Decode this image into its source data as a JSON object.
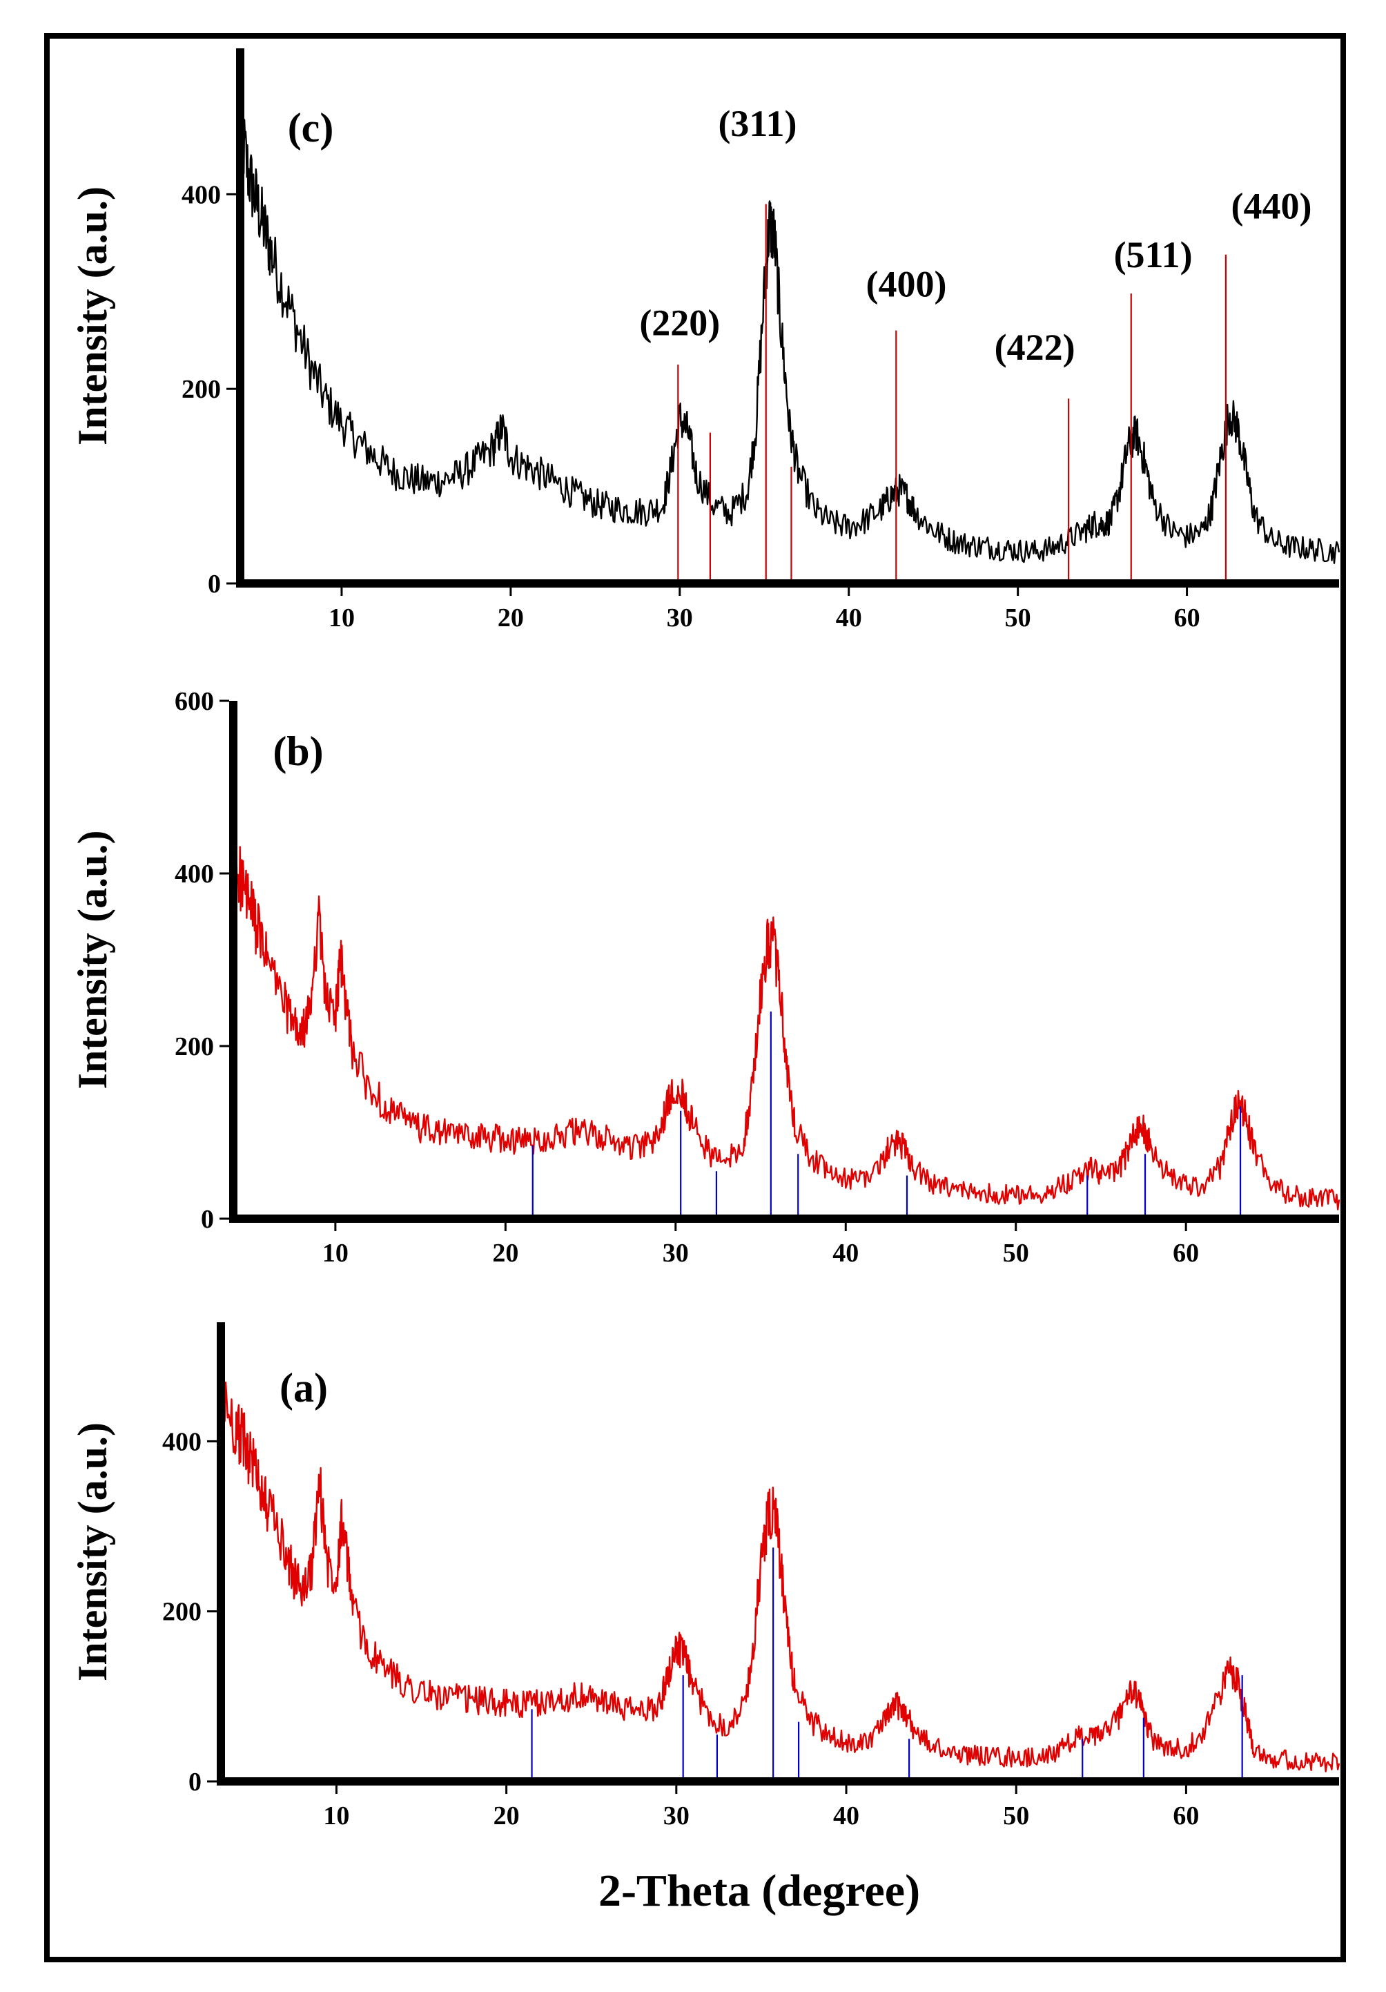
{
  "chart_data": [
    {
      "id": "c",
      "type": "line",
      "panel_label": "(c)",
      "ylabel": "Intensity (a.u.)",
      "xlabel": "",
      "xlim": [
        4,
        69
      ],
      "ylim": [
        0,
        550
      ],
      "x_ticks": [
        10,
        20,
        30,
        40,
        50,
        60
      ],
      "y_ticks": [
        0,
        200,
        400
      ],
      "grid": false,
      "series_color": "#000000",
      "series": [
        {
          "name": "pattern (c)",
          "x": [
            4,
            4.5,
            5,
            5.5,
            6,
            7,
            8,
            9,
            10,
            11,
            12,
            13,
            14,
            15,
            16,
            17,
            18,
            19,
            19.5,
            20,
            21,
            22,
            23,
            24,
            25,
            26,
            27,
            28,
            29,
            29.5,
            30,
            30.5,
            31,
            32,
            33,
            34,
            34.5,
            35,
            35.3,
            35.6,
            36,
            36.5,
            37,
            38,
            39,
            40,
            41,
            42,
            42.5,
            43,
            43.5,
            44,
            45,
            46,
            47,
            48,
            49,
            50,
            51,
            52,
            53,
            54,
            54.5,
            55,
            55.5,
            56,
            56.5,
            57,
            57.5,
            58,
            59,
            60,
            61,
            61.5,
            62,
            62.5,
            63,
            63.5,
            64,
            65,
            66,
            67,
            68,
            69
          ],
          "y": [
            470,
            420,
            390,
            360,
            330,
            280,
            230,
            190,
            165,
            145,
            130,
            115,
            108,
            104,
            106,
            112,
            125,
            140,
            160,
            130,
            120,
            110,
            100,
            90,
            82,
            78,
            75,
            74,
            80,
            120,
            170,
            155,
            110,
            80,
            72,
            95,
            160,
            300,
            370,
            355,
            260,
            160,
            115,
            75,
            62,
            58,
            65,
            78,
            90,
            96,
            88,
            72,
            55,
            45,
            40,
            38,
            36,
            34,
            33,
            36,
            45,
            55,
            62,
            60,
            65,
            95,
            140,
            155,
            125,
            85,
            55,
            48,
            55,
            80,
            130,
            175,
            160,
            115,
            70,
            45,
            38,
            36,
            34,
            32
          ]
        }
      ],
      "reference_color": "#cc0000",
      "reference_lines": {
        "x": [
          29.9,
          31.8,
          35.1,
          36.6,
          42.8,
          53.0,
          56.7,
          62.3
        ],
        "y": [
          225,
          155,
          390,
          120,
          260,
          190,
          298,
          338
        ]
      },
      "annotations": [
        {
          "text": "(220)",
          "x": 30.0,
          "y": 255
        },
        {
          "text": "(311)",
          "x": 34.6,
          "y": 460
        },
        {
          "text": "(400)",
          "x": 43.4,
          "y": 295
        },
        {
          "text": "(422)",
          "x": 51.0,
          "y": 230
        },
        {
          "text": "(511)",
          "x": 58.0,
          "y": 325
        },
        {
          "text": "(440)",
          "x": 65.0,
          "y": 375
        }
      ]
    },
    {
      "id": "b",
      "type": "line",
      "panel_label": "(b)",
      "ylabel": "Intensity (a.u.)",
      "xlabel": "",
      "xlim": [
        4,
        69
      ],
      "ylim": [
        0,
        600
      ],
      "x_ticks": [
        10,
        20,
        30,
        40,
        50,
        60
      ],
      "y_ticks": [
        0,
        200,
        400,
        600
      ],
      "grid": false,
      "series_color": "#e00000",
      "series": [
        {
          "name": "pattern (b)",
          "x": [
            4,
            4.5,
            5,
            5.5,
            6,
            7,
            7.5,
            8,
            8.5,
            9,
            9.5,
            10,
            10.3,
            10.7,
            11,
            12,
            13,
            14,
            15,
            16,
            17,
            18,
            19,
            20,
            21,
            22,
            23,
            24,
            25,
            26,
            27,
            28,
            29,
            29.5,
            30,
            30.5,
            31,
            32,
            33,
            34,
            34.5,
            35,
            35.4,
            35.8,
            36.2,
            36.6,
            37,
            38,
            39,
            40,
            41,
            42,
            42.5,
            43,
            43.5,
            44,
            45,
            46,
            47,
            48,
            49,
            50,
            51,
            52,
            53,
            54,
            54.5,
            55,
            56,
            56.5,
            57,
            57.5,
            58,
            59,
            60,
            61,
            62,
            62.5,
            63,
            63.5,
            64,
            65,
            66,
            67,
            68,
            69
          ],
          "y": [
            420,
            390,
            360,
            330,
            300,
            250,
            225,
            210,
            240,
            350,
            250,
            235,
            300,
            240,
            195,
            150,
            130,
            115,
            105,
            100,
            98,
            96,
            94,
            92,
            90,
            92,
            96,
            100,
            98,
            92,
            85,
            82,
            95,
            130,
            155,
            140,
            110,
            75,
            65,
            90,
            150,
            260,
            315,
            320,
            250,
            160,
            110,
            70,
            52,
            45,
            48,
            62,
            80,
            90,
            80,
            60,
            40,
            35,
            32,
            30,
            29,
            28,
            28,
            32,
            42,
            55,
            58,
            50,
            55,
            75,
            100,
            105,
            80,
            50,
            38,
            38,
            60,
            100,
            135,
            120,
            80,
            40,
            28,
            25,
            23,
            22
          ]
        }
      ],
      "reference_color": "#0000cc",
      "reference_lines": {
        "x": [
          21.6,
          30.3,
          32.4,
          35.6,
          37.2,
          43.6,
          54.2,
          57.6,
          63.2
        ],
        "y": [
          85,
          125,
          55,
          240,
          75,
          50,
          50,
          75,
          130
        ]
      },
      "annotations": []
    },
    {
      "id": "a",
      "type": "line",
      "panel_label": "(a)",
      "ylabel": "Intensity (a.u.)",
      "xlabel": "2-Theta (degree)",
      "xlim": [
        3.2,
        69
      ],
      "ylim": [
        0,
        540
      ],
      "x_ticks": [
        10,
        20,
        30,
        40,
        50,
        60
      ],
      "y_ticks": [
        0,
        200,
        400
      ],
      "grid": false,
      "series_color": "#e00000",
      "series": [
        {
          "name": "pattern (a)",
          "x": [
            3.2,
            4,
            4.5,
            5,
            5.5,
            6,
            7,
            7.5,
            8,
            8.5,
            9,
            9.5,
            10,
            10.3,
            10.7,
            11,
            12,
            13,
            14,
            15,
            16,
            17,
            18,
            19,
            20,
            21,
            22,
            23,
            24,
            25,
            26,
            27,
            28,
            29,
            29.5,
            30,
            30.5,
            31,
            32,
            33,
            34,
            34.5,
            35,
            35.4,
            35.8,
            36.2,
            36.6,
            37,
            38,
            39,
            40,
            41,
            42,
            42.5,
            43,
            43.5,
            44,
            45,
            46,
            47,
            48,
            49,
            50,
            51,
            52,
            53,
            53.8,
            54.5,
            55,
            56,
            56.5,
            57,
            57.5,
            58,
            59,
            60,
            61,
            62,
            62.5,
            63,
            63.5,
            64,
            65,
            66,
            67,
            68,
            69
          ],
          "y": [
            450,
            420,
            400,
            380,
            350,
            320,
            270,
            240,
            225,
            245,
            350,
            255,
            240,
            310,
            250,
            200,
            150,
            130,
            115,
            105,
            100,
            98,
            96,
            94,
            92,
            90,
            92,
            96,
            100,
            98,
            92,
            85,
            82,
            90,
            125,
            160,
            145,
            110,
            75,
            65,
            90,
            150,
            260,
            310,
            318,
            245,
            160,
            110,
            70,
            52,
            45,
            48,
            60,
            80,
            90,
            80,
            60,
            42,
            35,
            32,
            30,
            29,
            28,
            28,
            32,
            42,
            55,
            50,
            55,
            75,
            100,
            105,
            80,
            50,
            38,
            38,
            60,
            100,
            135,
            120,
            80,
            40,
            28,
            25,
            23,
            22,
            21
          ]
        }
      ],
      "reference_color": "#0000cc",
      "reference_lines": {
        "x": [
          21.5,
          30.4,
          32.4,
          35.7,
          37.2,
          43.7,
          53.9,
          57.5,
          63.3
        ],
        "y": [
          85,
          125,
          55,
          275,
          70,
          50,
          50,
          75,
          125
        ]
      },
      "annotations": []
    }
  ]
}
